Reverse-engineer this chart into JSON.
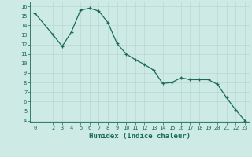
{
  "x": [
    0,
    2,
    3,
    4,
    5,
    6,
    7,
    8,
    9,
    10,
    11,
    12,
    13,
    14,
    15,
    16,
    17,
    18,
    19,
    20,
    21,
    22,
    23
  ],
  "y": [
    15.3,
    13.0,
    11.8,
    13.3,
    15.6,
    15.8,
    15.5,
    14.3,
    12.1,
    11.0,
    10.4,
    9.9,
    9.3,
    7.9,
    8.0,
    8.5,
    8.3,
    8.3,
    8.3,
    7.8,
    6.4,
    5.1,
    4.0
  ],
  "xlim": [
    -0.5,
    23.5
  ],
  "ylim": [
    3.8,
    16.5
  ],
  "yticks": [
    4,
    5,
    6,
    7,
    8,
    9,
    10,
    11,
    12,
    13,
    14,
    15,
    16
  ],
  "xticks": [
    0,
    2,
    3,
    4,
    5,
    6,
    7,
    8,
    9,
    10,
    11,
    12,
    13,
    14,
    15,
    16,
    17,
    18,
    19,
    20,
    21,
    22,
    23
  ],
  "xlabel": "Humidex (Indice chaleur)",
  "line_color": "#1a6b5a",
  "marker_color": "#1a6b5a",
  "bg_color": "#ceeae4",
  "grid_color": "#b8d8d0",
  "axis_color": "#1a6b5a",
  "tick_color": "#1a6b5a",
  "xlabel_fontsize": 6.5,
  "tick_fontsize": 5.0
}
